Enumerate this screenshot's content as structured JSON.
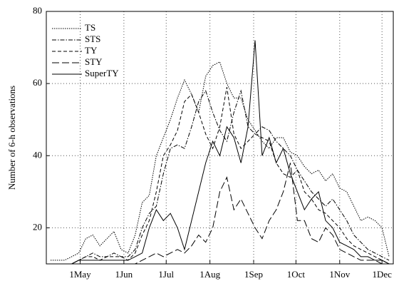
{
  "chart_data": {
    "type": "line",
    "ylabel": "Number of 6-h observations",
    "x": [
      100,
      105,
      110,
      115,
      120,
      125,
      130,
      135,
      140,
      145,
      150,
      155,
      160,
      165,
      170,
      175,
      180,
      185,
      190,
      195,
      200,
      205,
      210,
      215,
      220,
      225,
      230,
      235,
      240,
      245,
      250,
      255,
      260,
      265,
      270,
      275,
      280,
      285,
      290,
      295,
      300,
      305,
      310,
      315,
      320,
      325,
      330,
      335,
      340
    ],
    "xlim": [
      97,
      343
    ],
    "xticks": [
      {
        "value": 121,
        "label": "1May"
      },
      {
        "value": 152,
        "label": "1Jun"
      },
      {
        "value": 182,
        "label": "1Jul"
      },
      {
        "value": 213,
        "label": "1Aug"
      },
      {
        "value": 244,
        "label": "1Sep"
      },
      {
        "value": 274,
        "label": "1Oct"
      },
      {
        "value": 305,
        "label": "1Nov"
      },
      {
        "value": 335,
        "label": "1Dec"
      }
    ],
    "ylim": [
      10,
      80
    ],
    "yticks": [
      20,
      40,
      60,
      80
    ],
    "grid": true,
    "legend": "upper left",
    "series": [
      {
        "name": "TS",
        "color": "#000000",
        "dash": "1.5,1.5",
        "values": [
          11,
          11,
          11,
          12,
          13,
          17,
          18,
          15,
          17,
          19,
          14,
          13,
          18,
          27,
          29,
          40,
          45,
          50,
          56,
          61,
          57,
          52,
          62,
          65,
          66,
          60,
          56,
          56,
          50,
          47,
          44,
          42,
          45,
          45,
          41,
          40,
          37,
          35,
          36,
          33,
          35,
          31,
          30,
          26,
          22,
          23,
          22,
          20,
          12
        ]
      },
      {
        "name": "STS",
        "color": "#000000",
        "dash": "6,2,1.5,2",
        "values": [
          10,
          10,
          10,
          10,
          11,
          12,
          13,
          12,
          12,
          13,
          12,
          12,
          14,
          20,
          24,
          26,
          35,
          42,
          43,
          42,
          48,
          55,
          58,
          52,
          47,
          44,
          52,
          58,
          48,
          46,
          48,
          47,
          44,
          42,
          40,
          36,
          33,
          30,
          28,
          26,
          28,
          25,
          22,
          18,
          16,
          14,
          13,
          12,
          11
        ]
      },
      {
        "name": "TY",
        "color": "#000000",
        "dash": "5,3",
        "values": [
          10,
          10,
          10,
          10,
          11,
          12,
          12,
          11,
          12,
          12,
          12,
          11,
          13,
          18,
          22,
          30,
          40,
          43,
          47,
          55,
          57,
          52,
          46,
          42,
          48,
          59,
          46,
          42,
          44,
          46,
          45,
          44,
          38,
          35,
          34,
          36,
          30,
          28,
          25,
          24,
          22,
          20,
          17,
          15,
          14,
          13,
          12,
          11,
          10
        ]
      },
      {
        "name": "STY",
        "color": "#000000",
        "dash": "10,4",
        "values": [
          10,
          10,
          10,
          10,
          10,
          10,
          10,
          10,
          10,
          10,
          10,
          10,
          10,
          11,
          12,
          13,
          12,
          13,
          14,
          13,
          15,
          18,
          16,
          20,
          30,
          34,
          25,
          28,
          24,
          20,
          17,
          22,
          25,
          30,
          38,
          22,
          22,
          17,
          16,
          20,
          18,
          14,
          13,
          12,
          11,
          11,
          11,
          10,
          10
        ]
      },
      {
        "name": "SuperTY",
        "color": "#000000",
        "dash": "",
        "values": [
          10,
          10,
          10,
          10,
          11,
          11,
          11,
          11,
          11,
          11,
          11,
          11,
          12,
          13,
          20,
          25,
          22,
          24,
          20,
          14,
          22,
          30,
          38,
          44,
          40,
          48,
          45,
          38,
          48,
          72,
          40,
          45,
          38,
          42,
          35,
          30,
          25,
          28,
          30,
          22,
          20,
          16,
          15,
          14,
          12,
          12,
          11,
          11,
          10
        ]
      }
    ]
  }
}
